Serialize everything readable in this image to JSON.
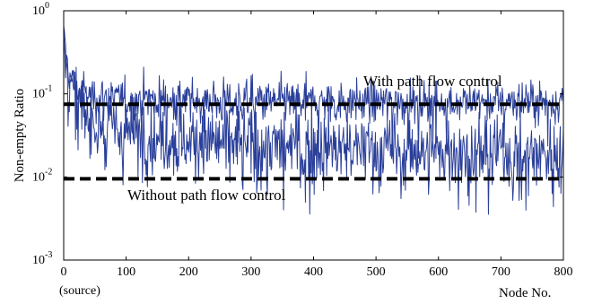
{
  "chart_data": {
    "type": "line",
    "title": "",
    "xlabel": "Node No.",
    "ylabel": "Non-empty Ratio",
    "xlim": [
      0,
      800
    ],
    "ylim": [
      0.001,
      1
    ],
    "yscale": "log",
    "grid": false,
    "x_ticks": [
      "0",
      "100",
      "200",
      "300",
      "400",
      "500",
      "600",
      "700",
      "800"
    ],
    "x_tick_values": [
      0,
      100,
      200,
      300,
      400,
      500,
      600,
      700,
      800
    ],
    "x_tick_sub": "(source)",
    "y_ticks": [
      {
        "base": "10",
        "exp": "0"
      },
      {
        "base": "10",
        "exp": "-1"
      },
      {
        "base": "10",
        "exp": "-2"
      },
      {
        "base": "10",
        "exp": "-3"
      }
    ],
    "y_tick_values": [
      1,
      0.1,
      0.01,
      0.001
    ],
    "annotations": [
      {
        "text": "With path flow control",
        "x": 460,
        "y": 0.135
      },
      {
        "text": "Without path flow control",
        "x": 45,
        "y": 0.0055
      }
    ],
    "series": [
      {
        "color": "#2a3f9a",
        "style": "noisy",
        "x": [
          0,
          2,
          5,
          10,
          15,
          20,
          30,
          40,
          60,
          100,
          200,
          400,
          600,
          800
        ],
        "values": [
          0.6,
          0.45,
          0.25,
          0.16,
          0.13,
          0.11,
          0.1,
          0.095,
          0.09,
          0.085,
          0.082,
          0.08,
          0.08,
          0.08
        ]
      },
      {
        "color": "#2a3f9a",
        "style": "noisy",
        "x": [
          0,
          2,
          5,
          10,
          20,
          30,
          50,
          75,
          100,
          150,
          200,
          300,
          400,
          600,
          800
        ],
        "values": [
          0.5,
          0.3,
          0.2,
          0.12,
          0.08,
          0.06,
          0.045,
          0.04,
          0.035,
          0.03,
          0.027,
          0.025,
          0.022,
          0.02,
          0.019
        ]
      },
      {
        "color": "#000000",
        "style": "dashed",
        "x": [
          0,
          800
        ],
        "values": [
          0.075,
          0.075
        ]
      },
      {
        "color": "#000000",
        "style": "dashed",
        "x": [
          0,
          800
        ],
        "values": [
          0.0095,
          0.0095
        ]
      }
    ]
  }
}
